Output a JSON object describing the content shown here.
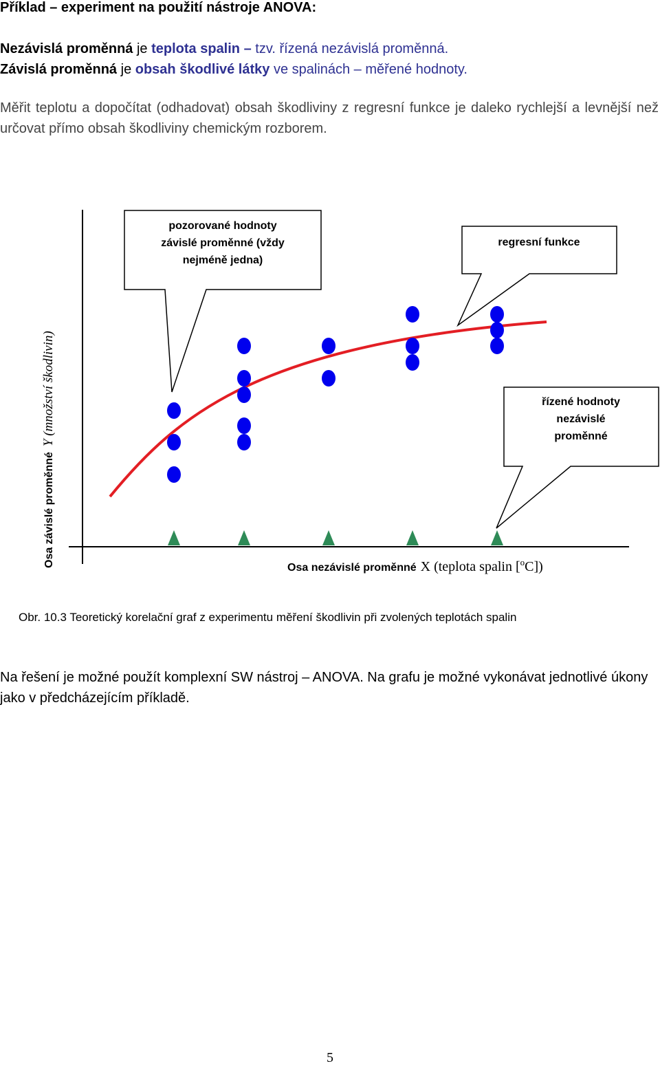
{
  "title": "Příklad – experiment na použití nástroje ANOVA:",
  "intro": [
    [
      "Nezávislá proměnná",
      " je ",
      "teplota spalin – ",
      "tzv. řízená nezávislá proměnná."
    ],
    [
      "Závislá proměnná",
      " je ",
      "obsah škodlivé látky",
      " ve spalinách – měřené hodnoty."
    ]
  ],
  "paragraph": "Měřit teplotu a dopočítat (odhadovat) obsah škodliviny z regresní funkce je daleko rychlejší a levnější než určovat přímo obsah škodliviny chemickým rozborem.",
  "diagram": {
    "callouts": [
      [
        "pozorované hodnoty",
        "závislé proměnné (vždy",
        "nejméně jedna)"
      ],
      [
        "regresní funkce"
      ],
      [
        "řízené hodnoty",
        "nezávislé",
        "proměnné"
      ]
    ],
    "y_axis_label": {
      "main": "Osa závislé proměnné",
      "symbol": "Y (množství škodlivin)"
    },
    "x_axis_label": {
      "main": "Osa nezávislé proměnné",
      "symbol": "X (teplota spalin [",
      "superscript": "o",
      "end": "C])"
    }
  },
  "caption": "Obr. 10.3 Teoretický korelační graf z experimentu měření škodlivin při zvolených teplotách spalin",
  "conclusion": "Na řešení je možné použít komplexní SW nástroj – ANOVA. Na grafu je možné vykonávat jednotlivé úkony jako v předcházejícím příkladě.",
  "page_number": "5"
}
